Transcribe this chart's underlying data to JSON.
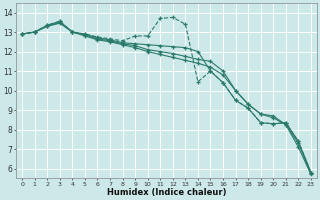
{
  "bg_color": "#cce8e8",
  "grid_color": "#ffffff",
  "line_color": "#2a7a6a",
  "xlabel": "Humidex (Indice chaleur)",
  "ylim": [
    5.5,
    14.5
  ],
  "xlim": [
    -0.5,
    23.5
  ],
  "yticks": [
    6,
    7,
    8,
    9,
    10,
    11,
    12,
    13,
    14
  ],
  "xticks": [
    0,
    1,
    2,
    3,
    4,
    5,
    6,
    7,
    8,
    9,
    10,
    11,
    12,
    13,
    14,
    15,
    16,
    17,
    18,
    19,
    20,
    21,
    22,
    23
  ],
  "series1": {
    "x": [
      0,
      1,
      2,
      3,
      4,
      5,
      6,
      7,
      8,
      9,
      10,
      11,
      12,
      13,
      14,
      15,
      16,
      17,
      18,
      19,
      20,
      21,
      22,
      23
    ],
    "y": [
      12.9,
      13.0,
      13.35,
      13.55,
      13.0,
      12.9,
      12.75,
      12.65,
      12.55,
      12.8,
      12.8,
      13.7,
      13.75,
      13.4,
      10.45,
      11.0,
      10.4,
      9.5,
      9.1,
      8.35,
      8.3,
      8.35,
      7.4,
      5.8
    ],
    "dashed": true
  },
  "series2": {
    "x": [
      0,
      1,
      2,
      3,
      4,
      5,
      6,
      7,
      8,
      9,
      10,
      11,
      12,
      13,
      14,
      15,
      16,
      17,
      18,
      19,
      20,
      21,
      22,
      23
    ],
    "y": [
      12.9,
      13.0,
      13.35,
      13.55,
      13.0,
      12.9,
      12.7,
      12.6,
      12.45,
      12.4,
      12.35,
      12.3,
      12.25,
      12.2,
      12.0,
      11.0,
      10.4,
      9.5,
      9.1,
      8.35,
      8.3,
      8.35,
      7.4,
      5.8
    ]
  },
  "series3": {
    "x": [
      0,
      1,
      2,
      3,
      4,
      5,
      6,
      7,
      8,
      9,
      10,
      11,
      12,
      13,
      14,
      15,
      16,
      17,
      18,
      19,
      20,
      21,
      22,
      23
    ],
    "y": [
      12.9,
      13.0,
      13.3,
      13.5,
      13.0,
      12.85,
      12.65,
      12.55,
      12.4,
      12.3,
      12.1,
      12.0,
      11.9,
      11.75,
      11.6,
      11.5,
      11.0,
      10.0,
      9.3,
      8.8,
      8.7,
      8.25,
      7.3,
      5.75
    ]
  },
  "series4": {
    "x": [
      0,
      1,
      2,
      3,
      4,
      5,
      6,
      7,
      8,
      9,
      10,
      11,
      12,
      13,
      14,
      15,
      16,
      17,
      18,
      19,
      20,
      21,
      22,
      23
    ],
    "y": [
      12.9,
      13.0,
      13.3,
      13.45,
      13.0,
      12.8,
      12.6,
      12.5,
      12.35,
      12.2,
      12.0,
      11.85,
      11.7,
      11.55,
      11.4,
      11.2,
      10.8,
      10.0,
      9.3,
      8.8,
      8.6,
      8.25,
      7.1,
      5.7
    ]
  }
}
